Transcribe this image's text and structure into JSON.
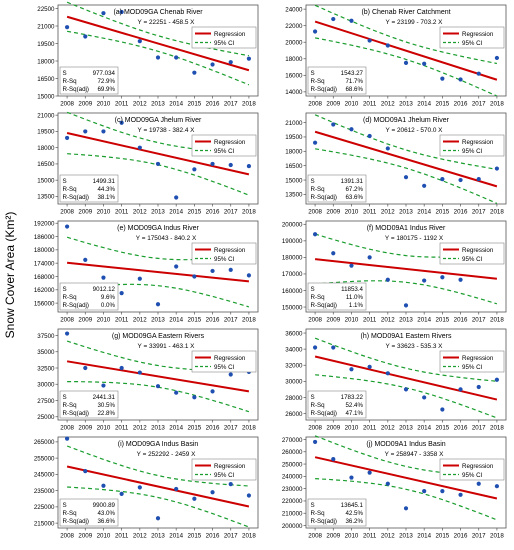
{
  "figure": {
    "ylabel": "Snow Cover Area (Km²)",
    "legend": {
      "regression": "Regression",
      "ci": "95% CI"
    },
    "colors": {
      "regression": "#cc0000",
      "ci": "#1a9d2e",
      "points": "#1f4fb0"
    }
  },
  "chart_data": [
    {
      "type": "scatter",
      "title": "(a) MOD09GA Chenab River",
      "equation": "Y = 22251 - 458.5 X",
      "x": [
        2008,
        2009,
        2010,
        2011,
        2012,
        2013,
        2014,
        2015,
        2016,
        2017,
        2018
      ],
      "y": [
        20900,
        20100,
        22100,
        22200,
        19700,
        18300,
        18300,
        17000,
        17700,
        17900,
        18200
      ],
      "regression": {
        "intercept": 22251,
        "slope": -458.5
      },
      "ylim": [
        15000,
        22800
      ],
      "yticks": [
        15000,
        16500,
        18000,
        19500,
        21000,
        22500
      ],
      "ytick_labels": [
        "15000",
        "16500",
        "18000",
        "19500",
        "21000",
        "22500"
      ],
      "stats": {
        "labels": [
          "S",
          "R-Sq",
          "R-Sq(adj)"
        ],
        "values": [
          "977.034",
          "72.9%",
          "69.9%"
        ]
      },
      "legend": "top-right"
    },
    {
      "type": "scatter",
      "title": "(b) Chenab River Catchment",
      "equation": "Y = 23199 - 703.2 X",
      "x": [
        2008,
        2009,
        2010,
        2011,
        2012,
        2013,
        2014,
        2015,
        2016,
        2017,
        2018
      ],
      "y": [
        21300,
        22800,
        22600,
        20200,
        19600,
        17500,
        17400,
        15600,
        15500,
        16200,
        18100
      ],
      "regression": {
        "intercept": 23199,
        "slope": -703.2
      },
      "ylim": [
        13500,
        24500
      ],
      "yticks": [
        14000,
        16000,
        18000,
        20000,
        22000,
        24000
      ],
      "ytick_labels": [
        "14000",
        "16000",
        "18000",
        "20000",
        "22000",
        "24000"
      ],
      "stats": {
        "labels": [
          "S",
          "R-Sq",
          "R-Sq(adj)"
        ],
        "values": [
          "1543.27",
          "71.7%",
          "68.6%"
        ]
      },
      "legend": "top-right"
    },
    {
      "type": "scatter",
      "title": "(c) MOD09GA Jhelum River",
      "equation": "Y = 19738 - 382.4 X",
      "x": [
        2008,
        2009,
        2010,
        2011,
        2012,
        2013,
        2014,
        2015,
        2016,
        2017,
        2018
      ],
      "y": [
        18900,
        19500,
        19500,
        20300,
        18000,
        16500,
        13400,
        16000,
        16500,
        16400,
        16300
      ],
      "regression": {
        "intercept": 19738,
        "slope": -382.4
      },
      "ylim": [
        12800,
        21200
      ],
      "yticks": [
        13500,
        15000,
        16500,
        18000,
        19500,
        21000
      ],
      "ytick_labels": [
        "13500",
        "15000",
        "16500",
        "18000",
        "19500",
        "21000"
      ],
      "stats": {
        "labels": [
          "S",
          "R-Sq",
          "R-Sq(adj)"
        ],
        "values": [
          "1499.31",
          "44.3%",
          "38.1%"
        ]
      },
      "legend": "top-right"
    },
    {
      "type": "scatter",
      "title": "(d) MOD09A1 Jhelum River",
      "equation": "Y = 20612 - 570.0 X",
      "x": [
        2008,
        2009,
        2010,
        2011,
        2012,
        2013,
        2014,
        2015,
        2016,
        2017,
        2018
      ],
      "y": [
        18900,
        20800,
        20300,
        19600,
        18300,
        15300,
        14400,
        15100,
        15000,
        15100,
        16200
      ],
      "regression": {
        "intercept": 20612,
        "slope": -570.0
      },
      "ylim": [
        12500,
        22000
      ],
      "yticks": [
        13500,
        15000,
        16500,
        18000,
        19500,
        21000
      ],
      "ytick_labels": [
        "13500",
        "15000",
        "16500",
        "18000",
        "19500",
        "21000"
      ],
      "stats": {
        "labels": [
          "S",
          "R-Sq",
          "R-Sq(adj)"
        ],
        "values": [
          "1391.31",
          "67.2%",
          "63.6%"
        ]
      },
      "legend": "top-right"
    },
    {
      "type": "scatter",
      "title": "(e) MOD09GA Indus River",
      "equation": "Y = 175043 - 840.2 X",
      "x": [
        2008,
        2009,
        2010,
        2011,
        2012,
        2013,
        2014,
        2015,
        2016,
        2017,
        2018
      ],
      "y": [
        190500,
        175500,
        167500,
        160500,
        167000,
        155500,
        172500,
        168000,
        170500,
        171000,
        168500
      ],
      "regression": {
        "intercept": 175043,
        "slope": -840.2
      },
      "ylim": [
        152000,
        193000
      ],
      "yticks": [
        156000,
        162000,
        168000,
        174000,
        180000,
        186000,
        192000
      ],
      "ytick_labels": [
        "156000",
        "162000",
        "168000",
        "174000",
        "180000",
        "186000",
        "192000"
      ],
      "stats": {
        "labels": [
          "S",
          "R-Sq",
          "R-Sq(adj)"
        ],
        "values": [
          "9012.12",
          "9.6%",
          "0.0%"
        ]
      },
      "legend": "top-right"
    },
    {
      "type": "scatter",
      "title": "(f) MOD09A1 Indus River",
      "equation": "Y = 180175 - 1192 X",
      "x": [
        2008,
        2009,
        2010,
        2011,
        2012,
        2013,
        2014,
        2015,
        2016,
        2017,
        2018
      ],
      "y": [
        194000,
        182500,
        175000,
        180000,
        166500,
        151000,
        166000,
        168000,
        166500,
        181000,
        178000
      ],
      "regression": {
        "intercept": 180175,
        "slope": -1192
      },
      "ylim": [
        147000,
        202000
      ],
      "yticks": [
        150000,
        160000,
        170000,
        180000,
        190000,
        200000
      ],
      "ytick_labels": [
        "150000",
        "160000",
        "170000",
        "180000",
        "190000",
        "200000"
      ],
      "stats": {
        "labels": [
          "S",
          "R-Sq",
          "R-Sq(adj)"
        ],
        "values": [
          "11853.4",
          "11.0%",
          "1.1%"
        ]
      },
      "legend": "top-right"
    },
    {
      "type": "scatter",
      "title": "(g) MOD09GA Eastern Rivers",
      "equation": "Y = 33991 - 463.1 X",
      "x": [
        2008,
        2009,
        2010,
        2011,
        2012,
        2013,
        2014,
        2015,
        2016,
        2017,
        2018
      ],
      "y": [
        37800,
        32500,
        29800,
        32500,
        31800,
        29700,
        28700,
        28000,
        28900,
        31500,
        31900
      ],
      "regression": {
        "intercept": 33991,
        "slope": -463.1
      },
      "ylim": [
        24500,
        38500
      ],
      "yticks": [
        25000,
        27500,
        30000,
        32500,
        35000,
        37500
      ],
      "ytick_labels": [
        "25000",
        "27500",
        "30000",
        "32500",
        "35000",
        "37500"
      ],
      "stats": {
        "labels": [
          "S",
          "R-Sq",
          "R-Sq(adj)"
        ],
        "values": [
          "2441.31",
          "30.5%",
          "22.8%"
        ]
      },
      "legend": "top-right"
    },
    {
      "type": "scatter",
      "title": "(h) MOD09A1 Eastern Rivers",
      "equation": "Y = 33623 - 535.3 X",
      "x": [
        2008,
        2009,
        2010,
        2011,
        2012,
        2013,
        2014,
        2015,
        2016,
        2017,
        2018
      ],
      "y": [
        34200,
        34200,
        31500,
        31800,
        31000,
        29000,
        28000,
        26500,
        29000,
        29300,
        30200
      ],
      "regression": {
        "intercept": 33623,
        "slope": -535.3
      },
      "ylim": [
        25200,
        36500
      ],
      "yticks": [
        26000,
        28000,
        30000,
        32000,
        34000,
        36000
      ],
      "ytick_labels": [
        "26000",
        "28000",
        "30000",
        "32000",
        "34000",
        "36000"
      ],
      "stats": {
        "labels": [
          "S",
          "R-Sq",
          "R-Sq(adj)"
        ],
        "values": [
          "1783.22",
          "52.4%",
          "47.1%"
        ]
      },
      "legend": "top-right"
    },
    {
      "type": "scatter",
      "title": "(i) MOD09GA Indus Basin",
      "equation": "Y = 252292 - 2459 X",
      "x": [
        2008,
        2009,
        2010,
        2011,
        2012,
        2013,
        2014,
        2015,
        2016,
        2017,
        2018
      ],
      "y": [
        267000,
        247000,
        238000,
        233000,
        237000,
        218000,
        236000,
        230000,
        234000,
        239000,
        232000
      ],
      "regression": {
        "intercept": 252292,
        "slope": -2459
      },
      "ylim": [
        212000,
        268000
      ],
      "yticks": [
        215000,
        225000,
        235000,
        245000,
        255000,
        265000
      ],
      "ytick_labels": [
        "215000",
        "225000",
        "235000",
        "245000",
        "255000",
        "265000"
      ],
      "stats": {
        "labels": [
          "S",
          "R-Sq",
          "R-Sq(adj)"
        ],
        "values": [
          "9900.89",
          "43.0%",
          "36.6%"
        ]
      },
      "legend": "top-right"
    },
    {
      "type": "scatter",
      "title": "(j) MOD09A1 Indus Basin",
      "equation": "Y = 258947 - 3358 X",
      "x": [
        2008,
        2009,
        2010,
        2011,
        2012,
        2013,
        2014,
        2015,
        2016,
        2017,
        2018
      ],
      "y": [
        268000,
        254000,
        239000,
        243000,
        234000,
        214000,
        228000,
        228000,
        225000,
        234000,
        232000
      ],
      "regression": {
        "intercept": 258947,
        "slope": -3358
      },
      "ylim": [
        198000,
        272000
      ],
      "yticks": [
        200000,
        210000,
        220000,
        230000,
        240000,
        250000,
        260000,
        270000
      ],
      "ytick_labels": [
        "200000",
        "210000",
        "220000",
        "230000",
        "240000",
        "250000",
        "260000",
        "270000"
      ],
      "stats": {
        "labels": [
          "S",
          "R-Sq",
          "R-Sq(adj)"
        ],
        "values": [
          "13645.1",
          "42.5%",
          "36.2%"
        ]
      },
      "legend": "top-right"
    }
  ]
}
